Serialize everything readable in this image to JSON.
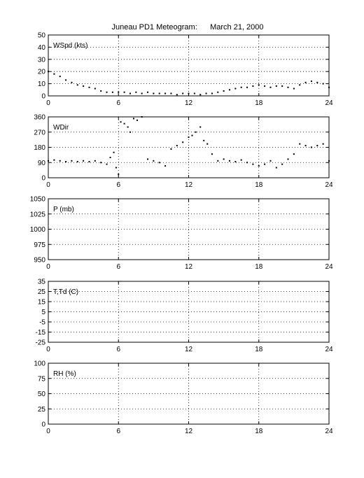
{
  "title": "Juneau PD1 Meteogram:      March 21, 2000",
  "chart_data": [
    {
      "type": "scatter",
      "label": "WSpd (kts)",
      "xlim": [
        0,
        24
      ],
      "ylim": [
        0,
        50
      ],
      "xticks": [
        0,
        6,
        12,
        18,
        24
      ],
      "yticks": [
        0,
        10,
        20,
        30,
        40,
        50
      ],
      "grid": true,
      "series": [
        {
          "x": [
            0,
            0.5,
            1,
            1.5,
            2,
            2.5,
            3,
            3.5,
            4,
            4.5,
            5,
            5.5,
            6,
            6.5,
            7,
            7.5,
            8,
            8.5,
            9,
            9.5,
            10,
            10.5,
            11,
            11.5,
            12,
            12.5,
            13,
            13.5,
            14,
            14.5,
            15,
            15.5,
            16,
            16.5,
            17,
            17.5,
            18,
            18.5,
            19,
            19.5,
            20,
            20.5,
            21,
            21.5,
            22,
            22.5,
            23,
            23.5,
            24
          ],
          "values": [
            20,
            18,
            16,
            13,
            11,
            9,
            8,
            7,
            6,
            4,
            3,
            3,
            3,
            3,
            2,
            3,
            2,
            3,
            2,
            2,
            2,
            2,
            1,
            2,
            2,
            2,
            1,
            2,
            2,
            3,
            4,
            5,
            6,
            7,
            7,
            8,
            9,
            8,
            7,
            8,
            8,
            7,
            6,
            9,
            11,
            12,
            11,
            10,
            7
          ]
        }
      ]
    },
    {
      "type": "scatter",
      "label": "WDir",
      "xlim": [
        0,
        24
      ],
      "ylim": [
        0,
        360
      ],
      "xticks": [
        0,
        6,
        12,
        18,
        24
      ],
      "yticks": [
        0,
        90,
        180,
        270,
        360
      ],
      "grid": true,
      "series": [
        {
          "x": [
            0,
            0.5,
            1,
            1.5,
            2,
            2.5,
            3,
            3.5,
            4,
            4.5,
            5,
            5.3,
            5.6,
            5.8,
            6,
            6.2,
            6.5,
            6.8,
            7,
            7.3,
            7.6,
            8,
            8.5,
            9,
            9.5,
            10,
            10.5,
            11,
            11.5,
            12,
            12.3,
            12.6,
            13,
            13.3,
            13.6,
            14,
            14.5,
            15,
            15.5,
            16,
            16.5,
            17,
            17.5,
            18,
            18.5,
            19,
            19.5,
            20,
            20.5,
            21,
            21.5,
            22,
            22.5,
            23,
            23.5,
            24
          ],
          "values": [
            100,
            105,
            100,
            95,
            100,
            95,
            100,
            95,
            100,
            90,
            80,
            120,
            150,
            60,
            20,
            330,
            320,
            300,
            270,
            350,
            340,
            360,
            110,
            100,
            90,
            70,
            170,
            190,
            210,
            240,
            250,
            270,
            300,
            220,
            200,
            140,
            100,
            110,
            100,
            95,
            105,
            90,
            80,
            70,
            80,
            100,
            60,
            80,
            110,
            140,
            200,
            190,
            180,
            190,
            200,
            100
          ]
        }
      ]
    },
    {
      "type": "scatter",
      "label": "P (mb)",
      "xlim": [
        0,
        24
      ],
      "ylim": [
        950,
        1050
      ],
      "xticks": [
        0,
        6,
        12,
        18,
        24
      ],
      "yticks": [
        950,
        975,
        1000,
        1025,
        1050
      ],
      "grid": true,
      "series": []
    },
    {
      "type": "scatter",
      "label": "T,Td (C)",
      "xlim": [
        0,
        24
      ],
      "ylim": [
        -25,
        35
      ],
      "xticks": [
        0,
        6,
        12,
        18,
        24
      ],
      "yticks": [
        -25,
        -15,
        -5,
        5,
        15,
        25,
        35
      ],
      "grid": true,
      "series": []
    },
    {
      "type": "scatter",
      "label": "RH (%)",
      "xlim": [
        0,
        24
      ],
      "ylim": [
        0,
        100
      ],
      "xticks": [
        0,
        6,
        12,
        18,
        24
      ],
      "yticks": [
        0,
        25,
        50,
        75,
        100
      ],
      "grid": true,
      "series": []
    }
  ]
}
